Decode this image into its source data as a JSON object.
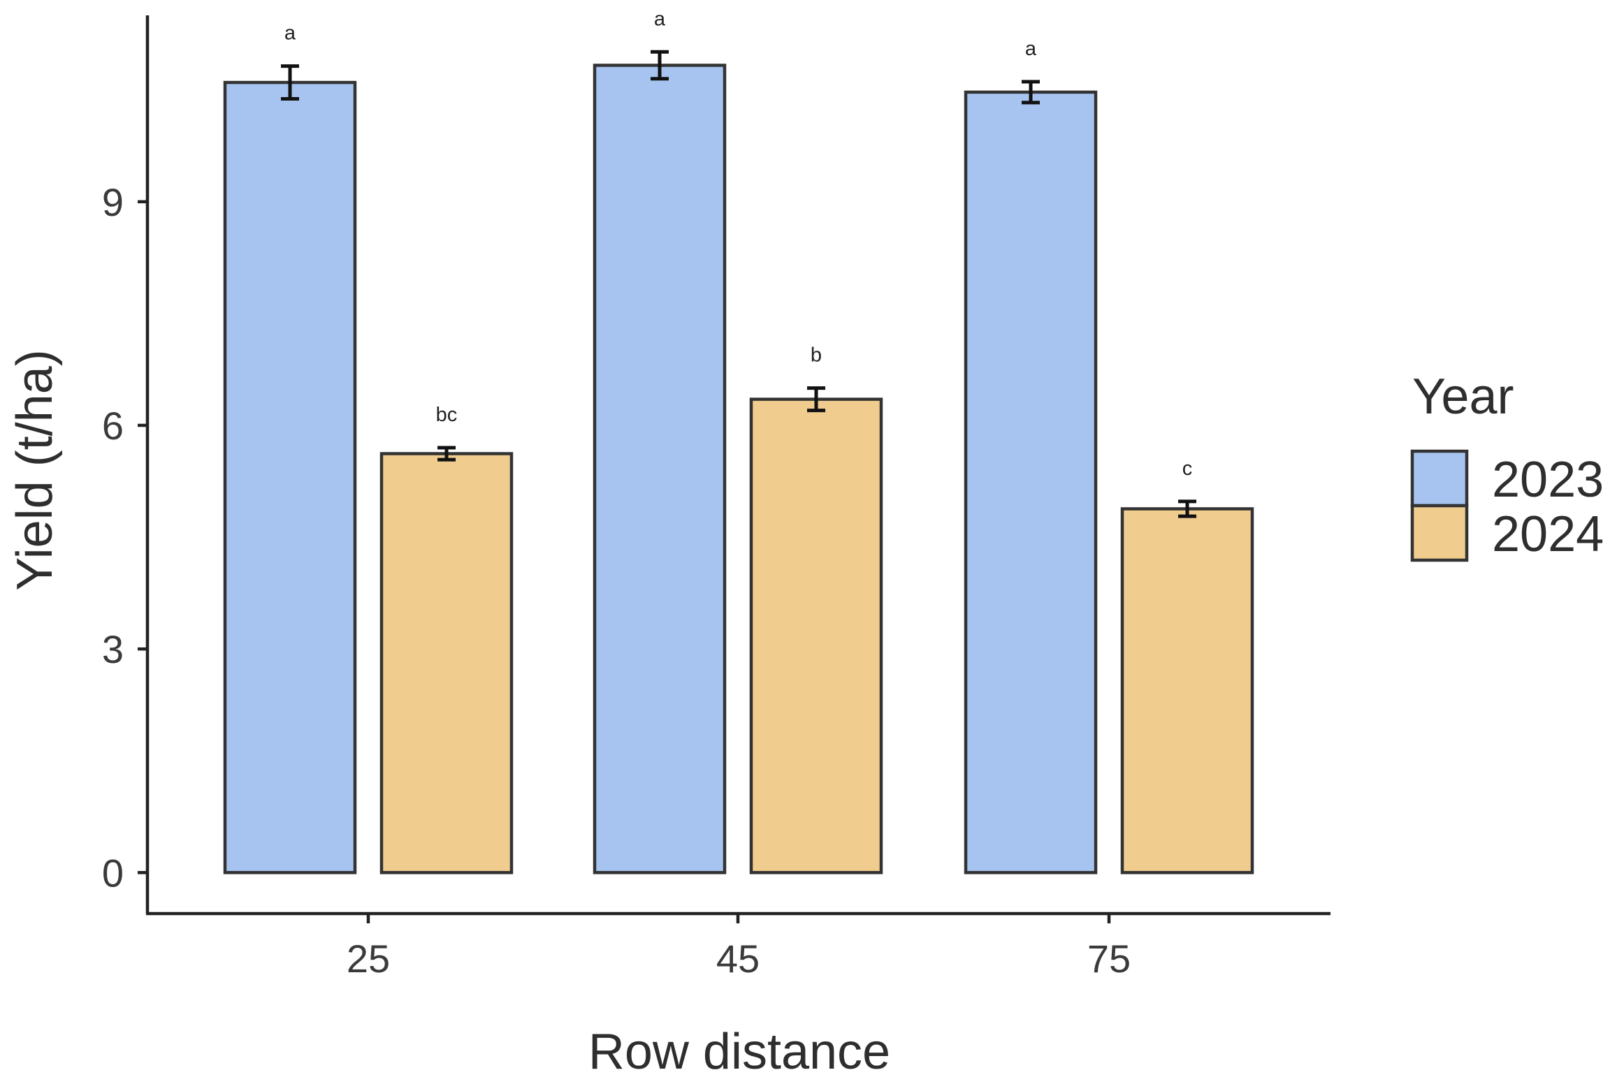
{
  "chart_data": {
    "type": "bar",
    "xlabel": "Row distance",
    "ylabel": "Yield (t/ha)",
    "categories": [
      "25",
      "45",
      "75"
    ],
    "ylim": [
      -0.55,
      11.5
    ],
    "yticks": [
      0,
      3,
      6,
      9
    ],
    "grid": false,
    "legend": {
      "title": "Year",
      "placement": "right"
    },
    "series": [
      {
        "name": "2023",
        "color": "#a7c4f0",
        "values": [
          10.6,
          10.83,
          10.47
        ],
        "errors": [
          0.22,
          0.18,
          0.14
        ],
        "labels": [
          "a",
          "a",
          "a"
        ]
      },
      {
        "name": "2024",
        "color": "#f0cd8e",
        "values": [
          5.62,
          6.35,
          4.88
        ],
        "errors": [
          0.08,
          0.15,
          0.1
        ],
        "labels": [
          "bc",
          "b",
          "c"
        ]
      }
    ],
    "bar_stroke": "#333333",
    "axis_color": "#222222"
  }
}
